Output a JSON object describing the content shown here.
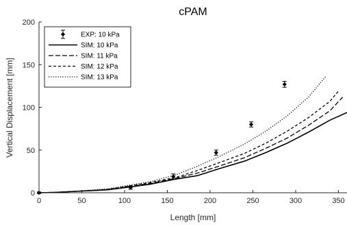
{
  "chart_data": {
    "type": "line",
    "title": "cPAM",
    "xlabel": "Length [mm]",
    "ylabel": "Vertical Displacement [mm]",
    "xlim": [
      0,
      360
    ],
    "ylim": [
      0,
      200
    ],
    "xticks": [
      0,
      50,
      100,
      150,
      200,
      250,
      300,
      350
    ],
    "yticks": [
      0,
      50,
      100,
      150,
      200
    ],
    "grid": false,
    "legend_position": "top-left",
    "series": [
      {
        "name": "EXP: 10 kPa",
        "kind": "errorbar",
        "color": "#000000",
        "points": [
          {
            "x": 0,
            "y": 0,
            "err": 1
          },
          {
            "x": 107,
            "y": 6,
            "err": 2
          },
          {
            "x": 157,
            "y": 19,
            "err": 3
          },
          {
            "x": 207,
            "y": 47,
            "err": 3
          },
          {
            "x": 248,
            "y": 80,
            "err": 3
          },
          {
            "x": 287,
            "y": 127,
            "err": 3.5
          }
        ]
      },
      {
        "name": "SIM: 10 kPa",
        "kind": "line",
        "style": "solid",
        "color": "#000000",
        "x": [
          0,
          20,
          40,
          60,
          80,
          100,
          130,
          160,
          185,
          210,
          240,
          265,
          290,
          315,
          340,
          360
        ],
        "y": [
          0,
          0.5,
          1.5,
          2.5,
          3.5,
          6,
          10,
          16,
          20,
          28,
          37,
          47,
          58,
          71,
          85,
          94
        ]
      },
      {
        "name": "SIM: 11 kPa",
        "kind": "line",
        "style": "dashed",
        "color": "#000000",
        "x": [
          0,
          20,
          40,
          60,
          80,
          100,
          130,
          160,
          185,
          210,
          240,
          265,
          290,
          315,
          340,
          355
        ],
        "y": [
          0,
          0.5,
          1.5,
          2.5,
          3.5,
          6.5,
          11,
          17,
          23,
          31,
          41,
          52,
          64,
          79,
          96,
          112
        ]
      },
      {
        "name": "SIM: 12 kPa",
        "kind": "line",
        "style": "dashed-short",
        "color": "#000000",
        "x": [
          0,
          20,
          40,
          60,
          80,
          100,
          130,
          160,
          185,
          210,
          240,
          265,
          290,
          315,
          340,
          350
        ],
        "y": [
          0,
          0.5,
          1.5,
          2.5,
          4,
          7,
          12,
          18,
          26,
          35,
          46,
          58,
          72,
          88,
          107,
          119
        ]
      },
      {
        "name": "SIM: 13 kPa",
        "kind": "line",
        "style": "dotted",
        "color": "#000000",
        "x": [
          0,
          20,
          40,
          60,
          80,
          100,
          130,
          160,
          185,
          210,
          240,
          265,
          290,
          315,
          335
        ],
        "y": [
          0,
          0.5,
          1.5,
          3,
          4.5,
          8,
          13,
          21,
          31,
          42,
          57,
          72,
          90,
          112,
          136
        ]
      }
    ]
  }
}
